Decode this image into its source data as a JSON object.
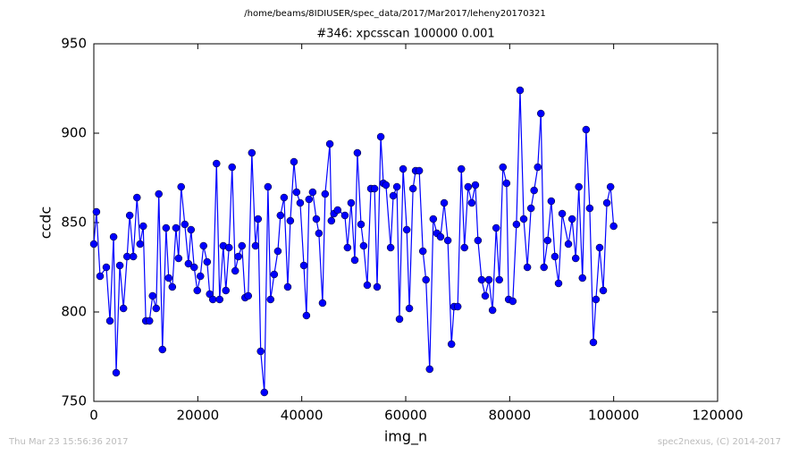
{
  "chart_data": {
    "type": "line",
    "title": "/home/beams/8IDIUSER/spec_data/2017/Mar2017/leheny20170321",
    "subtitle": "#346: xpcsscan 100000 0.001",
    "xlabel": "img_n",
    "ylabel": "ccdc",
    "annotations": [
      "Thu Mar 23 15:56:36 2017",
      "spec2nexus, (C) 2014-2017"
    ],
    "xlim": [
      0,
      120000
    ],
    "xticks": [
      0,
      20000,
      40000,
      60000,
      80000,
      100000,
      120000
    ],
    "ylim": [
      750,
      950
    ],
    "yticks": [
      750,
      800,
      850,
      900,
      950
    ],
    "grid": false,
    "x": [
      0,
      500,
      1200,
      2400,
      3100,
      3800,
      4300,
      5000,
      5700,
      6400,
      6900,
      7600,
      8300,
      8900,
      9500,
      10000,
      10700,
      11300,
      12000,
      12500,
      13200,
      13900,
      14400,
      15100,
      15800,
      16300,
      16800,
      17500,
      18200,
      18700,
      19300,
      19900,
      20500,
      21100,
      21800,
      22300,
      22900,
      23600,
      24200,
      24900,
      25400,
      26000,
      26600,
      27200,
      27800,
      28500,
      29100,
      29700,
      30400,
      31100,
      31600,
      32100,
      32800,
      33500,
      34000,
      34700,
      35400,
      35900,
      36600,
      37300,
      37800,
      38500,
      39000,
      39700,
      40400,
      40900,
      41400,
      42100,
      42800,
      43300,
      44000,
      44500,
      45400,
      45700,
      46200,
      46900,
      48300,
      48800,
      49500,
      50200,
      50700,
      51400,
      51900,
      52600,
      53300,
      54000,
      54500,
      55200,
      55700,
      56200,
      57100,
      57600,
      58300,
      58800,
      59500,
      60200,
      60700,
      61400,
      61900,
      62600,
      63300,
      63900,
      64600,
      65300,
      66000,
      66700,
      67400,
      68100,
      68800,
      69300,
      70000,
      70700,
      71300,
      72000,
      72700,
      73400,
      73900,
      74600,
      75300,
      76000,
      76700,
      77400,
      78000,
      78700,
      79400,
      79800,
      80600,
      81300,
      82000,
      82700,
      83400,
      84100,
      84700,
      85400,
      86000,
      86600,
      87300,
      88000,
      88700,
      89400,
      90100,
      91300,
      92000,
      92700,
      93300,
      94000,
      94700,
      95400,
      96100,
      96600,
      97300,
      98000,
      98700,
      99400,
      100000
    ],
    "series": [
      {
        "color": "#0000ff",
        "values": [
          838,
          856,
          820,
          825,
          795,
          842,
          766,
          826,
          802,
          831,
          854,
          831,
          864,
          838,
          848,
          795,
          795,
          809,
          802,
          866,
          779,
          847,
          819,
          814,
          847,
          830,
          870,
          849,
          827,
          846,
          825,
          812,
          820,
          837,
          828,
          810,
          807,
          883,
          807,
          837,
          812,
          836,
          881,
          823,
          831,
          837,
          808,
          809,
          889,
          837,
          852,
          778,
          755,
          870,
          807,
          821,
          834,
          854,
          864,
          814,
          851,
          884,
          867,
          861,
          826,
          798,
          863,
          867,
          852,
          844,
          805,
          866,
          894,
          851,
          855,
          857,
          854,
          836,
          861,
          829,
          889,
          849,
          837,
          815,
          869,
          869,
          814,
          898,
          872,
          871,
          836,
          865,
          870,
          796,
          880,
          846,
          802,
          869,
          879,
          879,
          834,
          818,
          768,
          852,
          844,
          842,
          861,
          840,
          782,
          803,
          803,
          880,
          836,
          870,
          861,
          871,
          840,
          818,
          809,
          818,
          801,
          847,
          818,
          881,
          872,
          807,
          806,
          849,
          924,
          852,
          825,
          858,
          868,
          881,
          911,
          825,
          840,
          862,
          831,
          816,
          855,
          838,
          852,
          830,
          870,
          819,
          902,
          858,
          783,
          807,
          836,
          812,
          861,
          870,
          848
        ]
      }
    ]
  }
}
